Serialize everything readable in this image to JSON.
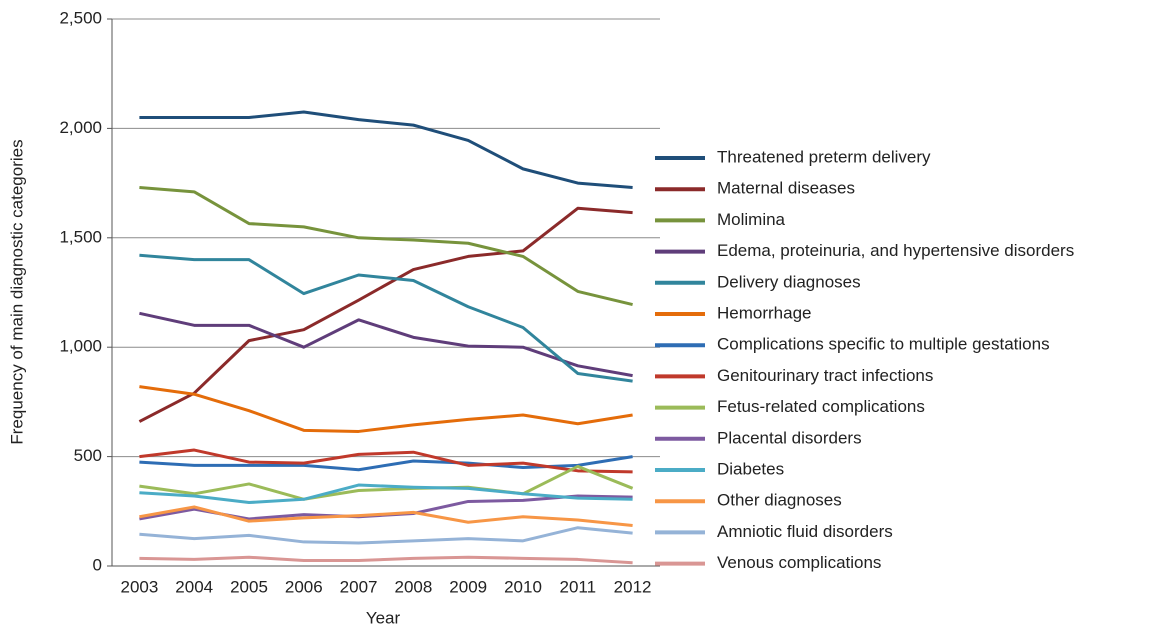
{
  "chart_data": {
    "type": "line",
    "x_label": "Year",
    "y_label": "Frequency of main diagnostic categories",
    "categories": [
      "2003",
      "2004",
      "2005",
      "2006",
      "2007",
      "2008",
      "2009",
      "2010",
      "2011",
      "2012"
    ],
    "ylim": [
      0,
      2500
    ],
    "yticks": [
      0,
      500,
      {
        "value": 1000,
        "label": "1,000"
      },
      {
        "value": 1500,
        "label": "1,500"
      },
      {
        "value": 2000,
        "label": "2,000"
      },
      {
        "value": 2500,
        "label": "2,500"
      }
    ],
    "grid": true,
    "legend": "right",
    "series": [
      {
        "name": "Threatened preterm delivery",
        "color": "#1f4e79",
        "values": [
          2050,
          2050,
          2050,
          2075,
          2040,
          2015,
          1945,
          1815,
          1750,
          1730
        ]
      },
      {
        "name": "Maternal diseases",
        "color": "#8b2a2a",
        "values": [
          660,
          790,
          1030,
          1080,
          1215,
          1355,
          1415,
          1440,
          1635,
          1615
        ]
      },
      {
        "name": "Molimina",
        "color": "#77933c",
        "values": [
          1730,
          1710,
          1565,
          1550,
          1500,
          1490,
          1475,
          1415,
          1255,
          1195
        ]
      },
      {
        "name": "Edema, proteinuria, and hypertensive disorders",
        "color": "#5f3d7a",
        "values": [
          1155,
          1100,
          1100,
          1000,
          1125,
          1045,
          1005,
          1000,
          915,
          870
        ]
      },
      {
        "name": "Delivery diagnoses",
        "color": "#31859c",
        "values": [
          1420,
          1400,
          1400,
          1245,
          1330,
          1305,
          1185,
          1090,
          880,
          845
        ]
      },
      {
        "name": "Hemorrhage",
        "color": "#e46c0a",
        "values": [
          820,
          785,
          710,
          620,
          615,
          645,
          670,
          690,
          650,
          690
        ]
      },
      {
        "name": "Complications specific to multiple gestations",
        "color": "#2e6db4",
        "values": [
          475,
          460,
          460,
          460,
          440,
          480,
          470,
          450,
          460,
          500
        ]
      },
      {
        "name": "Genitourinary tract infections",
        "color": "#c0392b",
        "values": [
          500,
          530,
          475,
          470,
          510,
          520,
          460,
          470,
          435,
          430
        ]
      },
      {
        "name": "Fetus-related complications",
        "color": "#9bbb59",
        "values": [
          365,
          330,
          375,
          305,
          345,
          355,
          360,
          330,
          455,
          355
        ]
      },
      {
        "name": "Placental disorders",
        "color": "#7d5aa0",
        "values": [
          215,
          260,
          215,
          235,
          225,
          240,
          295,
          300,
          320,
          315
        ]
      },
      {
        "name": "Diabetes",
        "color": "#4bacc6",
        "values": [
          335,
          320,
          290,
          305,
          370,
          360,
          355,
          330,
          310,
          305
        ]
      },
      {
        "name": "Other diagnoses",
        "color": "#f79646",
        "values": [
          225,
          270,
          205,
          220,
          230,
          245,
          200,
          225,
          210,
          185
        ]
      },
      {
        "name": "Amniotic fluid disorders",
        "color": "#95b3d7",
        "values": [
          145,
          125,
          140,
          110,
          105,
          115,
          125,
          115,
          175,
          150
        ]
      },
      {
        "name": "Venous complications",
        "color": "#d99694",
        "values": [
          35,
          30,
          40,
          25,
          25,
          35,
          40,
          35,
          30,
          15
        ]
      }
    ]
  }
}
